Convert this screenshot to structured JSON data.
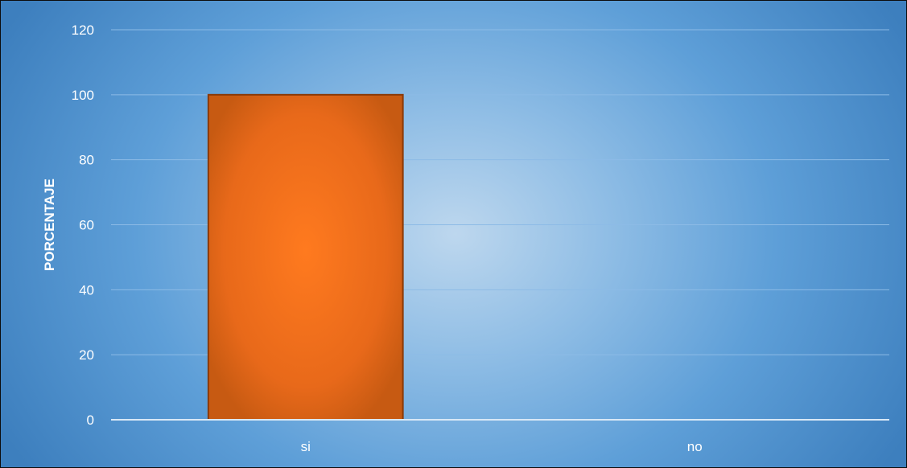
{
  "chart_data": {
    "type": "bar",
    "title": "",
    "xlabel": "",
    "ylabel": "PORCENTAJE",
    "categories": [
      "si",
      "no"
    ],
    "values": [
      100,
      0
    ],
    "ylim": [
      0,
      120
    ],
    "yticks": [
      0,
      20,
      40,
      60,
      80,
      100,
      120
    ],
    "ytick_labels": [
      "0",
      "20",
      "40",
      "60",
      "80",
      "100",
      "120"
    ],
    "grid": true,
    "legend": "none",
    "colors": {
      "bar": "#e8691a",
      "bar_highlight": "#ff7a1f",
      "bar_edge": "#8a3a08",
      "background_center": "#bdd7ee",
      "background_edge": "#3d7fbe",
      "gridline": "#8dbbe6",
      "axis_line": "#d9e8f6",
      "text": "#ffffff"
    }
  }
}
